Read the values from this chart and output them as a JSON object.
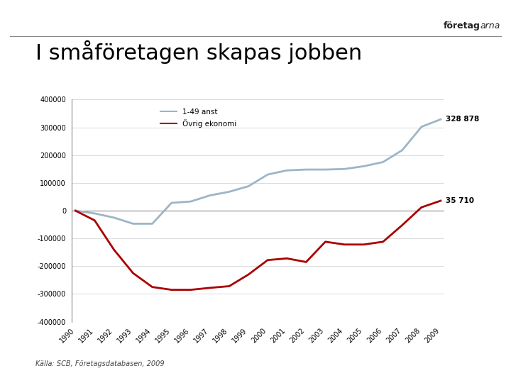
{
  "title": "I småföretagen skapas jobben",
  "logo_text_normal": "företag",
  "logo_text_italic": "arna",
  "source_text": "Källa: SCB, Företagsdatabasen, 2009",
  "years": [
    1990,
    1991,
    1992,
    1993,
    1994,
    1995,
    1996,
    1997,
    1998,
    1999,
    2000,
    2001,
    2002,
    2003,
    2004,
    2005,
    2006,
    2007,
    2008,
    2009
  ],
  "series1_name": "1-49 anst",
  "series1_color": "#9db5c7",
  "series1_values": [
    0,
    -10000,
    -25000,
    -47000,
    -47000,
    28000,
    33000,
    55000,
    68000,
    88000,
    130000,
    145000,
    148000,
    148000,
    150000,
    160000,
    175000,
    218000,
    302000,
    328878
  ],
  "series2_name": "Övrig ekonomi",
  "series2_color": "#aa0000",
  "series2_values": [
    0,
    -35000,
    -140000,
    -225000,
    -275000,
    -285000,
    -285000,
    -278000,
    -272000,
    -230000,
    -178000,
    -172000,
    -185000,
    -112000,
    -122000,
    -122000,
    -112000,
    -52000,
    12000,
    35710
  ],
  "end_label1": "328 878",
  "end_label2": "35 710",
  "ylim": [
    -400000,
    400000
  ],
  "yticks": [
    -400000,
    -300000,
    -200000,
    -100000,
    0,
    100000,
    200000,
    300000,
    400000
  ],
  "background_color": "#ffffff",
  "line_width": 2.0,
  "title_fontsize": 22,
  "tick_fontsize": 7,
  "legend_fontsize": 7.5,
  "label_fontsize": 7.5
}
